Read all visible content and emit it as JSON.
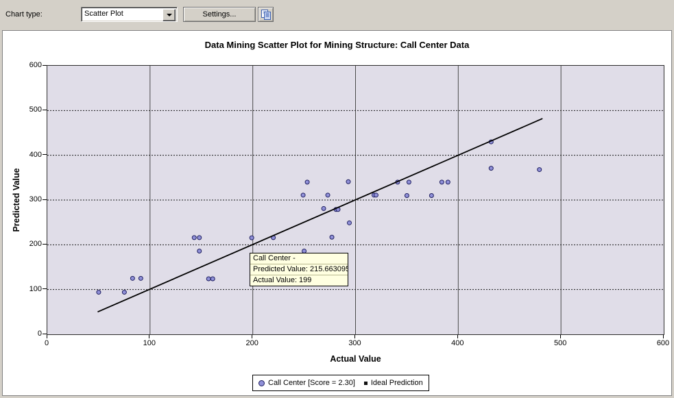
{
  "toolbar": {
    "chart_type_label": "Chart type:",
    "chart_type_value": "Scatter Plot",
    "settings_label": "Settings..."
  },
  "chart": {
    "title": "Data Mining Scatter Plot for Mining Structure: Call Center Data",
    "xlabel": "Actual Value",
    "ylabel": "Predicted Value"
  },
  "tooltip": {
    "line1": "Call Center -",
    "line2": "Predicted Value: 215.663095",
    "line3": "Actual Value: 199"
  },
  "legend": {
    "series_label": "Call Center [Score = 2.30]",
    "ideal_label": "Ideal Prediction"
  },
  "colors": {
    "window_bg": "#d4d0c8",
    "panel_bg": "#ffffff",
    "plot_bg": "#e0dde8",
    "grid_vertical": "#4a4a4a",
    "grid_horizontal": "#1a1a1a",
    "marker_fill": "#9090d8",
    "marker_stroke": "#1e1e5e",
    "ideal_line": "#000000",
    "tooltip_bg": "#ffffe1",
    "legend_square": "#111111"
  },
  "chart_data": {
    "type": "scatter",
    "title": "Data Mining Scatter Plot for Mining Structure: Call Center Data",
    "xlabel": "Actual Value",
    "ylabel": "Predicted Value",
    "xlim": [
      0,
      600
    ],
    "ylim": [
      0,
      600
    ],
    "xticks": [
      0,
      100,
      200,
      300,
      400,
      500,
      600
    ],
    "yticks": [
      0,
      100,
      200,
      300,
      400,
      500,
      600
    ],
    "grid": {
      "vertical": "solid",
      "horizontal": "dashed"
    },
    "legend_position": "bottom-center",
    "series": [
      {
        "name": "Call Center [Score = 2.30]",
        "type": "scatter",
        "marker": "circle",
        "points": [
          [
            50,
            94
          ],
          [
            75,
            94
          ],
          [
            83,
            125
          ],
          [
            91,
            125
          ],
          [
            143,
            216
          ],
          [
            148,
            216
          ],
          [
            148,
            186
          ],
          [
            157,
            124
          ],
          [
            161,
            124
          ],
          [
            199,
            215.663095
          ],
          [
            220,
            216
          ],
          [
            250,
            186
          ],
          [
            249,
            311
          ],
          [
            253,
            340
          ],
          [
            269,
            281
          ],
          [
            273,
            311
          ],
          [
            277,
            217
          ],
          [
            281,
            279
          ],
          [
            283,
            279
          ],
          [
            293,
            341
          ],
          [
            294,
            249
          ],
          [
            318,
            311
          ],
          [
            320,
            311
          ],
          [
            341,
            340
          ],
          [
            350,
            310
          ],
          [
            352,
            340
          ],
          [
            374,
            310
          ],
          [
            384,
            340
          ],
          [
            390,
            340
          ],
          [
            432,
            430
          ],
          [
            432,
            371
          ],
          [
            479,
            368
          ]
        ]
      },
      {
        "name": "Ideal Prediction",
        "type": "line",
        "points": [
          [
            49,
            50
          ],
          [
            482,
            482
          ]
        ]
      }
    ],
    "tooltip_anchor": {
      "actual": 199,
      "predicted": 215.663095
    }
  }
}
